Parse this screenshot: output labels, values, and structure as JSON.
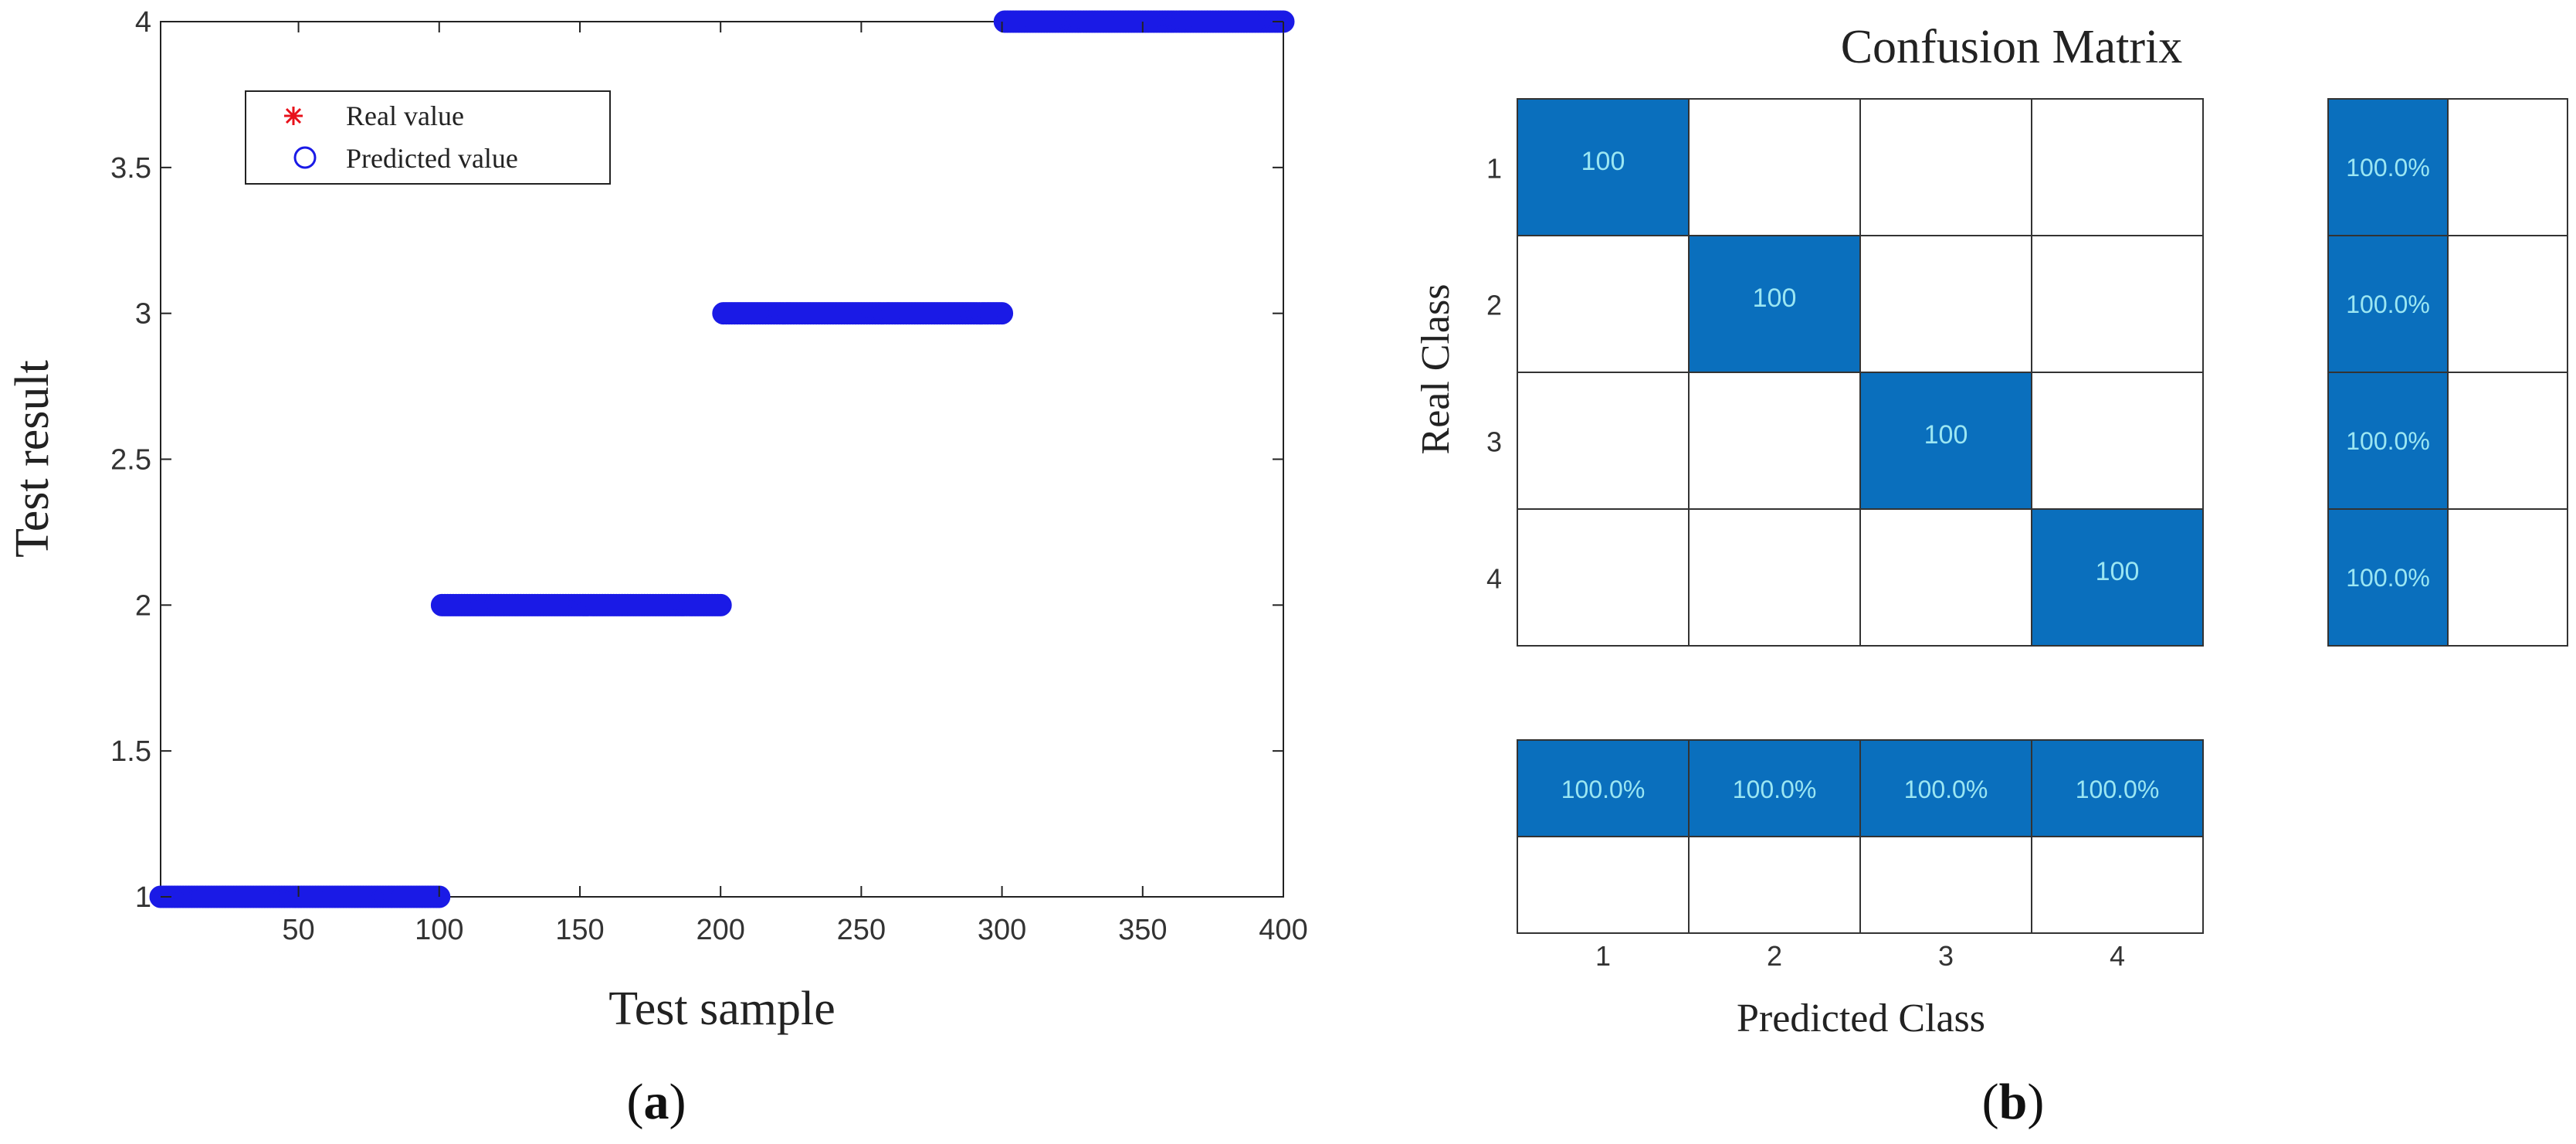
{
  "panel_labels": {
    "a": "a",
    "b": "b"
  },
  "colors": {
    "real": "#e8101a",
    "predicted": "#1a1ae6",
    "cell_fill": "#0a6fbd",
    "cell_text": "#9be6f2",
    "grid_line": "#333333"
  },
  "chart_data": [
    {
      "type": "scatter",
      "title": "",
      "xlabel": "Test sample",
      "ylabel": "Test result",
      "xlim": [
        1,
        400
      ],
      "ylim": [
        1,
        4
      ],
      "xticks": [
        50,
        100,
        150,
        200,
        250,
        300,
        350,
        400
      ],
      "yticks": [
        1,
        1.5,
        2,
        2.5,
        3,
        3.5,
        4
      ],
      "ytick_labels": [
        "1",
        "1.5",
        "2",
        "2.5",
        "3",
        "3.5",
        "4"
      ],
      "legend_placement": "top-left",
      "series": [
        {
          "name": "Real value",
          "marker": "asterisk",
          "segments": [
            {
              "x_start": 1,
              "x_end": 100,
              "y": 1
            },
            {
              "x_start": 101,
              "x_end": 200,
              "y": 2
            },
            {
              "x_start": 201,
              "x_end": 300,
              "y": 3
            },
            {
              "x_start": 301,
              "x_end": 400,
              "y": 4
            }
          ]
        },
        {
          "name": "Predicted value",
          "marker": "circle",
          "segments": [
            {
              "x_start": 1,
              "x_end": 100,
              "y": 1
            },
            {
              "x_start": 101,
              "x_end": 200,
              "y": 2
            },
            {
              "x_start": 201,
              "x_end": 300,
              "y": 3
            },
            {
              "x_start": 301,
              "x_end": 400,
              "y": 4
            }
          ]
        }
      ]
    },
    {
      "type": "heatmap",
      "title": "Confusion Matrix",
      "xlabel": "Predicted Class",
      "ylabel": "Real Class",
      "classes": [
        "1",
        "2",
        "3",
        "4"
      ],
      "matrix": [
        [
          100,
          0,
          0,
          0
        ],
        [
          0,
          100,
          0,
          0
        ],
        [
          0,
          0,
          100,
          0
        ],
        [
          0,
          0,
          0,
          100
        ]
      ],
      "row_summary": [
        "100.0%",
        "100.0%",
        "100.0%",
        "100.0%"
      ],
      "column_summary": [
        "100.0%",
        "100.0%",
        "100.0%",
        "100.0%"
      ]
    }
  ]
}
